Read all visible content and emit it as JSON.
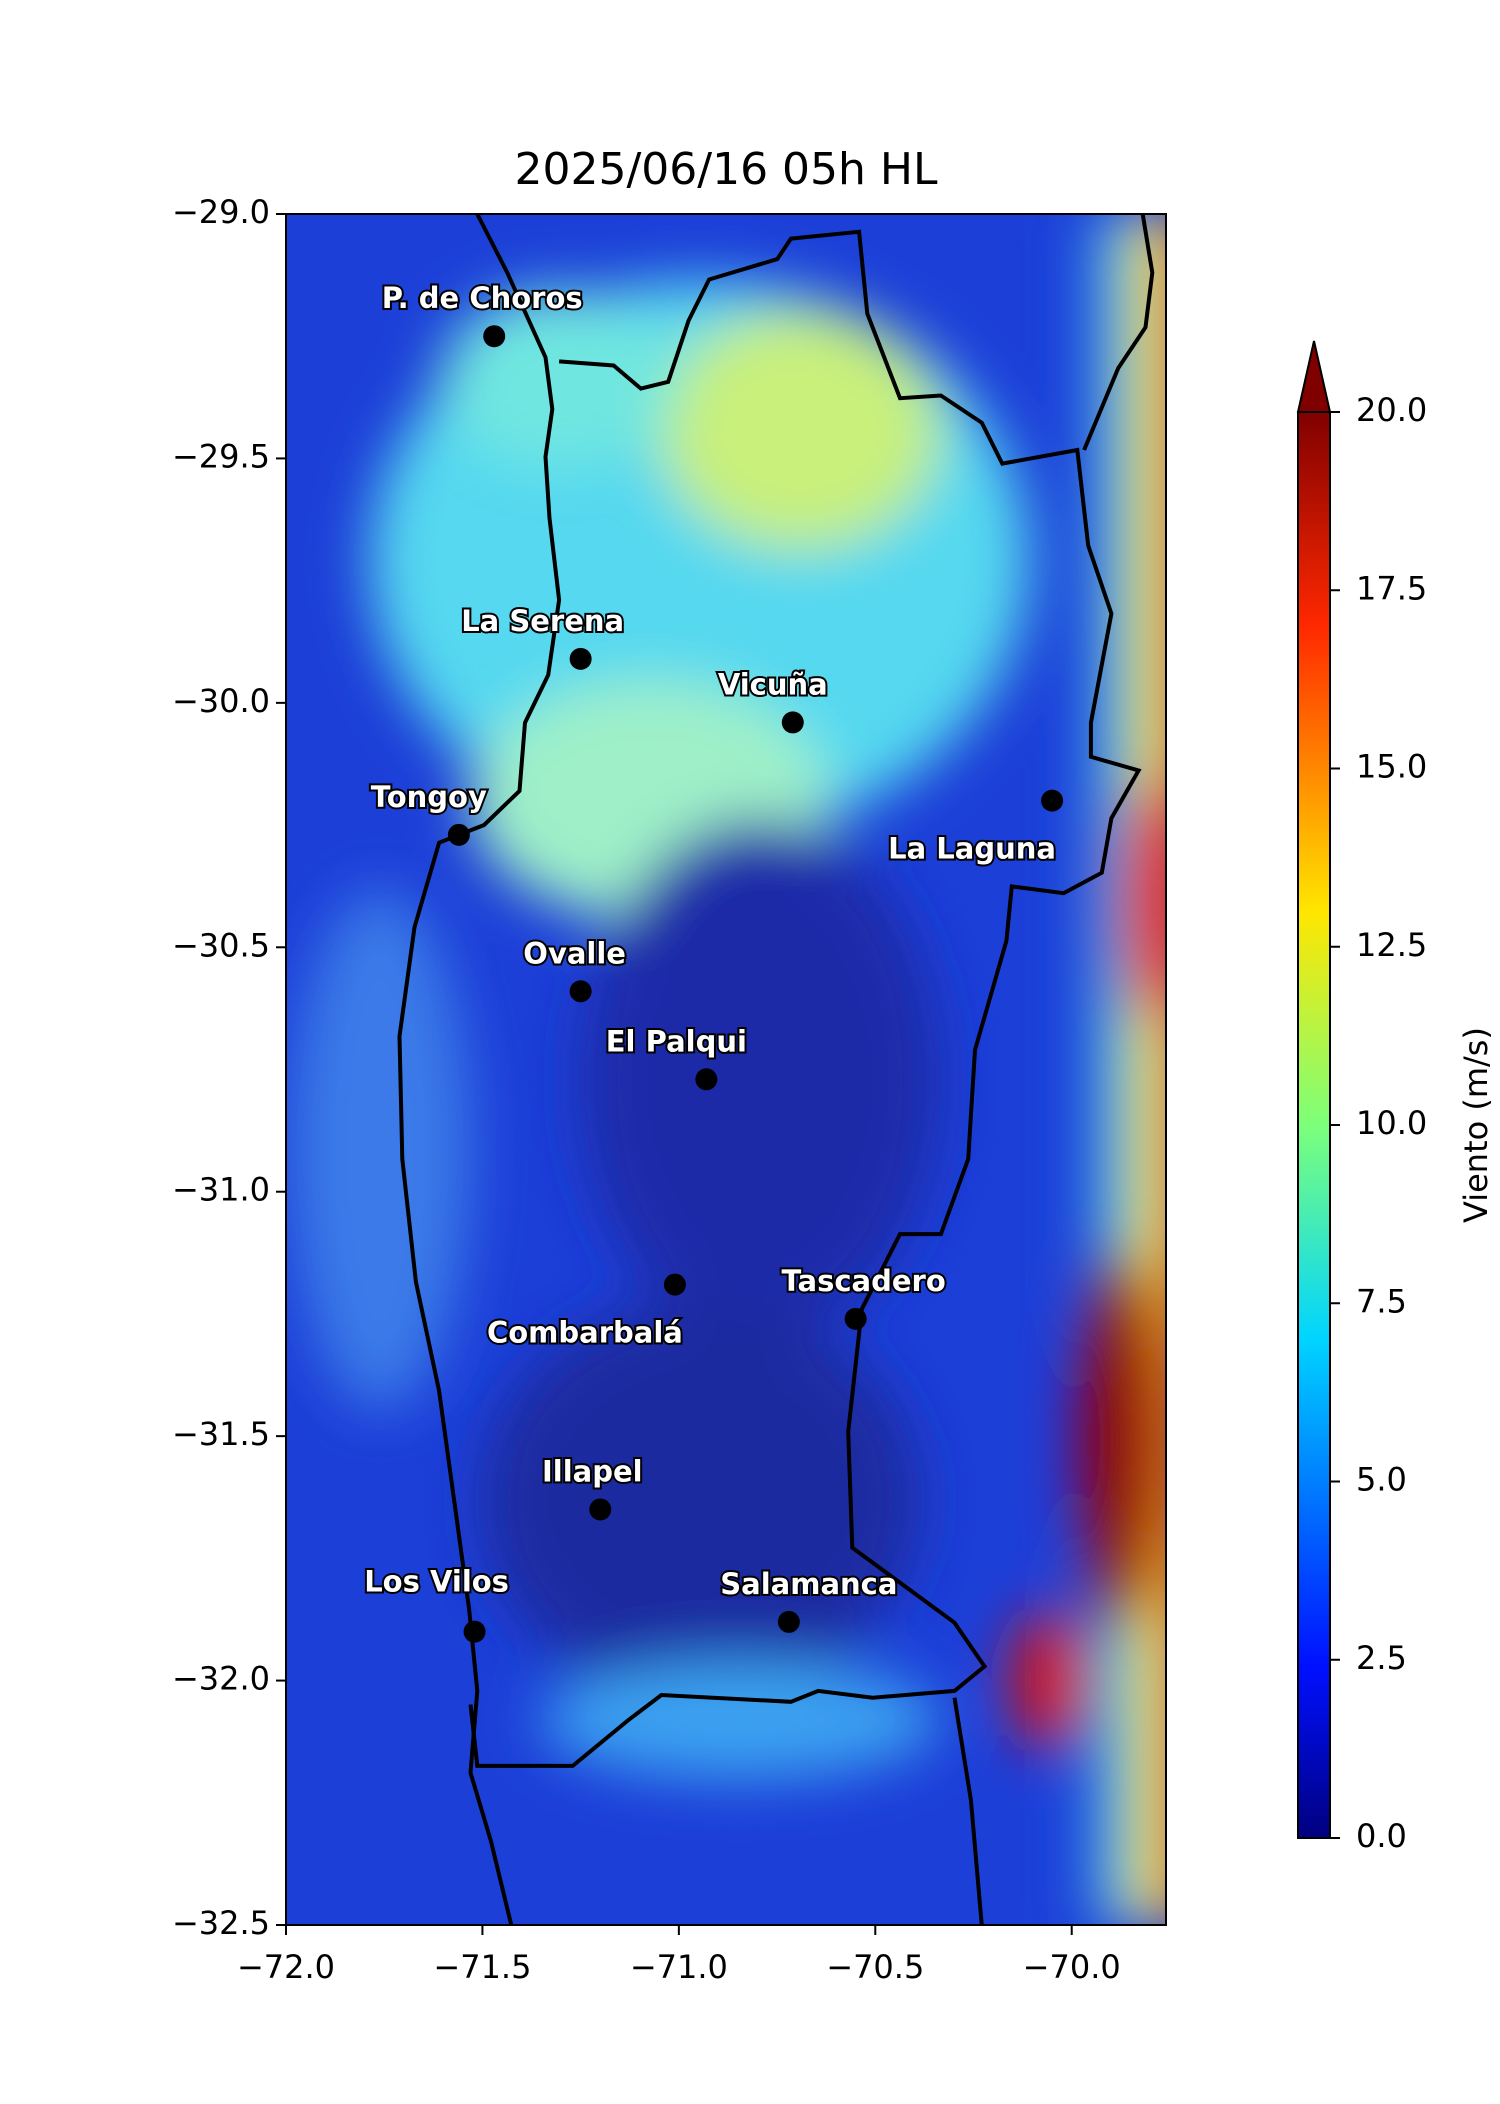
{
  "chart_data": {
    "type": "map",
    "title": "2025/06/16 05h HL",
    "xlim": [
      -72.0,
      -69.76
    ],
    "ylim": [
      -32.5,
      -29.0
    ],
    "xticks": [
      {
        "value": -72.0,
        "label": "−72.0"
      },
      {
        "value": -71.5,
        "label": "−71.5"
      },
      {
        "value": -71.0,
        "label": "−71.0"
      },
      {
        "value": -70.5,
        "label": "−70.5"
      },
      {
        "value": -70.0,
        "label": "−70.0"
      }
    ],
    "yticks": [
      {
        "value": -29.0,
        "label": "−29.0"
      },
      {
        "value": -29.5,
        "label": "−29.5"
      },
      {
        "value": -30.0,
        "label": "−30.0"
      },
      {
        "value": -30.5,
        "label": "−30.5"
      },
      {
        "value": -31.0,
        "label": "−31.0"
      },
      {
        "value": -31.5,
        "label": "−31.5"
      },
      {
        "value": -32.0,
        "label": "−32.0"
      },
      {
        "value": -32.5,
        "label": "−32.5"
      }
    ],
    "cities": [
      {
        "name": "P. de Choros",
        "lon": -71.47,
        "lat": -29.25
      },
      {
        "name": "La Serena",
        "lon": -71.25,
        "lat": -29.91
      },
      {
        "name": "Vicuña",
        "lon": -70.71,
        "lat": -30.04
      },
      {
        "name": "La Laguna",
        "lon": -70.05,
        "lat": -30.2
      },
      {
        "name": "Tongoy",
        "lon": -71.56,
        "lat": -30.27
      },
      {
        "name": "Ovalle",
        "lon": -71.25,
        "lat": -30.59
      },
      {
        "name": "El Palqui",
        "lon": -70.93,
        "lat": -30.77
      },
      {
        "name": "Combarbalá",
        "lon": -71.01,
        "lat": -31.19
      },
      {
        "name": "Tascadero",
        "lon": -70.55,
        "lat": -31.26
      },
      {
        "name": "Illapel",
        "lon": -71.2,
        "lat": -31.65
      },
      {
        "name": "Salamanca",
        "lon": -70.72,
        "lat": -31.88
      },
      {
        "name": "Los Vilos",
        "lon": -71.52,
        "lat": -31.9
      }
    ],
    "colorbar": {
      "label": "Viento (m/s)",
      "lim": [
        0.0,
        20.0
      ],
      "extend": "max",
      "ticks": [
        {
          "value": 0.0,
          "label": "0.0"
        },
        {
          "value": 2.5,
          "label": "2.5"
        },
        {
          "value": 5.0,
          "label": "5.0"
        },
        {
          "value": 7.5,
          "label": "7.5"
        },
        {
          "value": 10.0,
          "label": "10.0"
        },
        {
          "value": 12.5,
          "label": "12.5"
        },
        {
          "value": 15.0,
          "label": "15.0"
        },
        {
          "value": 17.5,
          "label": "17.5"
        },
        {
          "value": 20.0,
          "label": "20.0"
        }
      ]
    }
  }
}
